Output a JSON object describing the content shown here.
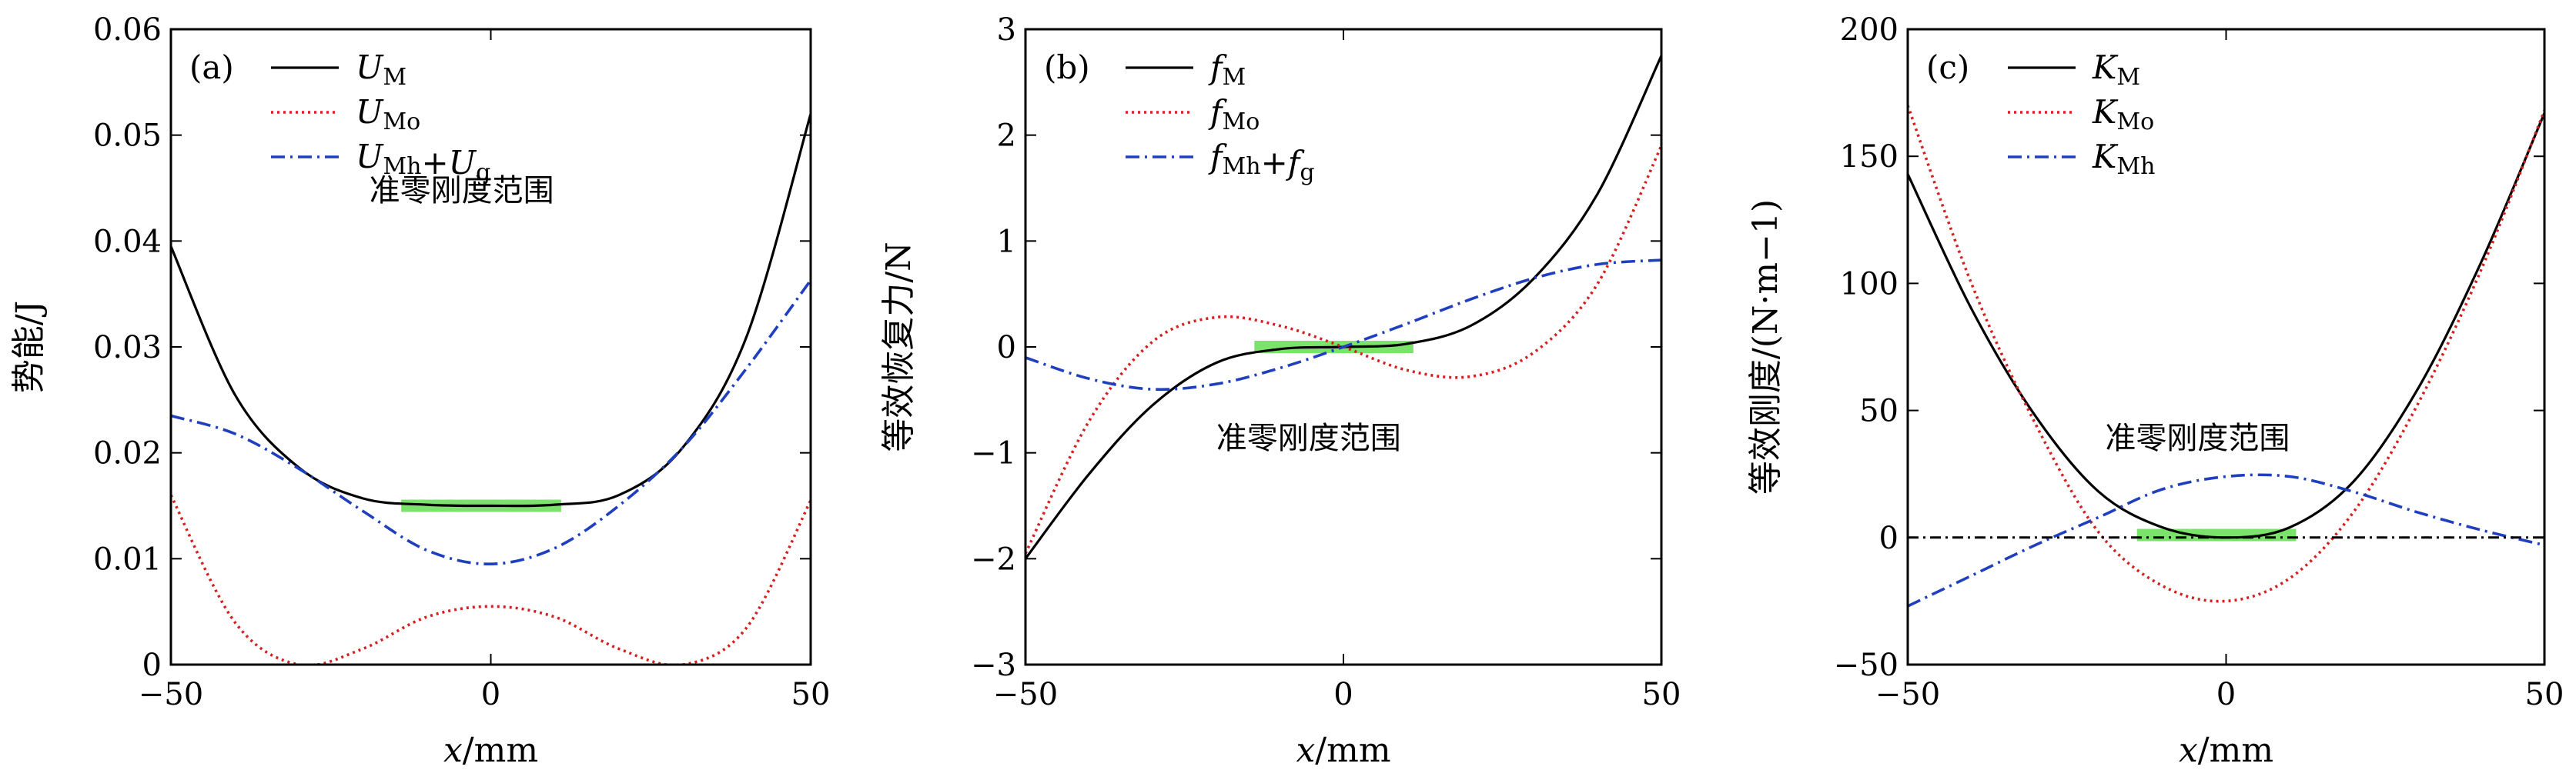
{
  "chart_data": [
    {
      "type": "line",
      "panel_label": "(a)",
      "xlabel": "x/mm",
      "ylabel": "势能/J",
      "xlim": [
        -50,
        50
      ],
      "ylim": [
        0,
        0.06
      ],
      "xticks": [
        "−50",
        "0",
        "50"
      ],
      "yticks": [
        "0",
        "0.01",
        "0.02",
        "0.03",
        "0.04",
        "0.05",
        "0.06"
      ],
      "annotation": "准零刚度范围",
      "highlight": {
        "x": [
          -14,
          11
        ],
        "y": [
          0.015,
          0.015
        ]
      },
      "series": [
        {
          "name": "U_M",
          "legend_label": "UM",
          "color": "#000000",
          "style": "solid",
          "x": [
            -50,
            -40,
            -30,
            -20,
            -10,
            0,
            10,
            20,
            30,
            40,
            50
          ],
          "y": [
            0.0395,
            0.0255,
            0.0186,
            0.0157,
            0.0151,
            0.015,
            0.0151,
            0.016,
            0.0205,
            0.031,
            0.052
          ]
        },
        {
          "name": "U_Mo",
          "legend_label": "UMo",
          "color": "#d62020",
          "style": "dotted",
          "x": [
            -50,
            -40,
            -30,
            -20,
            -10,
            0,
            10,
            20,
            30,
            40,
            50
          ],
          "y": [
            0.016,
            0.004,
            0.0,
            0.0015,
            0.0045,
            0.0055,
            0.0045,
            0.0015,
            0.0,
            0.0035,
            0.0155
          ]
        },
        {
          "name": "U_Mh+U_g",
          "legend_label": "UMh+Ug",
          "color": "#1f3fbf",
          "style": "dashdot",
          "x": [
            -50,
            -40,
            -30,
            -20,
            -10,
            0,
            10,
            20,
            30,
            40,
            50
          ],
          "y": [
            0.0235,
            0.0218,
            0.0185,
            0.0145,
            0.0108,
            0.0095,
            0.011,
            0.015,
            0.0205,
            0.028,
            0.0363
          ]
        }
      ]
    },
    {
      "type": "line",
      "panel_label": "(b)",
      "xlabel": "x/mm",
      "ylabel": "等效恢复力/N",
      "xlim": [
        -50,
        50
      ],
      "ylim": [
        -3,
        3
      ],
      "xticks": [
        "−50",
        "0",
        "50"
      ],
      "yticks": [
        "−3",
        "−2",
        "−1",
        "0",
        "1",
        "2",
        "3"
      ],
      "annotation": "准零刚度范围",
      "highlight": {
        "x": [
          -14,
          11
        ],
        "y": [
          0,
          0
        ]
      },
      "series": [
        {
          "name": "f_M",
          "legend_label": "fM",
          "color": "#000000",
          "style": "solid",
          "x": [
            -50,
            -40,
            -30,
            -20,
            -10,
            0,
            10,
            20,
            30,
            40,
            50
          ],
          "y": [
            -2.0,
            -1.2,
            -0.55,
            -0.15,
            -0.02,
            0.0,
            0.03,
            0.2,
            0.65,
            1.45,
            2.75
          ]
        },
        {
          "name": "f_Mo",
          "legend_label": "fMo",
          "color": "#d62020",
          "style": "dotted",
          "x": [
            -50,
            -40,
            -30,
            -20,
            -10,
            0,
            10,
            20,
            30,
            40,
            50
          ],
          "y": [
            -1.95,
            -0.7,
            0.05,
            0.28,
            0.2,
            0.0,
            -0.22,
            -0.28,
            -0.05,
            0.6,
            1.9
          ]
        },
        {
          "name": "f_Mh+f_g",
          "legend_label": "fMh+fg",
          "color": "#1f3fbf",
          "style": "dashdot",
          "x": [
            -50,
            -40,
            -30,
            -20,
            -10,
            0,
            10,
            20,
            30,
            40,
            50
          ],
          "y": [
            -0.1,
            -0.3,
            -0.4,
            -0.35,
            -0.2,
            0.0,
            0.22,
            0.45,
            0.65,
            0.78,
            0.82
          ]
        }
      ]
    },
    {
      "type": "line",
      "panel_label": "(c)",
      "xlabel": "x/mm",
      "ylabel": "等效刚度/(N·m−1)",
      "xlim": [
        -50,
        50
      ],
      "ylim": [
        -50,
        200
      ],
      "xticks": [
        "−50",
        "0",
        "50"
      ],
      "yticks": [
        "−50",
        "0",
        "50",
        "100",
        "150",
        "200"
      ],
      "annotation": "准零刚度范围",
      "highlight": {
        "x": [
          -14,
          11
        ],
        "y": [
          1,
          1
        ]
      },
      "series": [
        {
          "name": "K_M",
          "legend_label": "KM",
          "color": "#000000",
          "style": "solid",
          "x": [
            -50,
            -40,
            -30,
            -20,
            -10,
            0,
            10,
            20,
            30,
            40,
            50
          ],
          "y": [
            143,
            90,
            48,
            18,
            4,
            0,
            4,
            22,
            58,
            108,
            167
          ]
        },
        {
          "name": "K_Mo",
          "legend_label": "KMo",
          "color": "#d62020",
          "style": "dotted",
          "x": [
            -50,
            -40,
            -30,
            -20,
            -10,
            0,
            10,
            20,
            30,
            40,
            50
          ],
          "y": [
            170,
            100,
            45,
            2,
            -19,
            -25,
            -16,
            10,
            52,
            105,
            168
          ]
        },
        {
          "name": "K_Mh",
          "legend_label": "KMh",
          "color": "#1f3fbf",
          "style": "dashdot",
          "x": [
            -50,
            -40,
            -30,
            -20,
            -10,
            0,
            10,
            20,
            30,
            40,
            50
          ],
          "y": [
            -27,
            -15,
            -3,
            8,
            19,
            24,
            24,
            18,
            10,
            3,
            -3
          ]
        },
        {
          "name": "zero",
          "color": "#000000",
          "style": "dashdot-thin",
          "x": [
            -50,
            50
          ],
          "y": [
            0,
            0
          ]
        }
      ]
    }
  ]
}
